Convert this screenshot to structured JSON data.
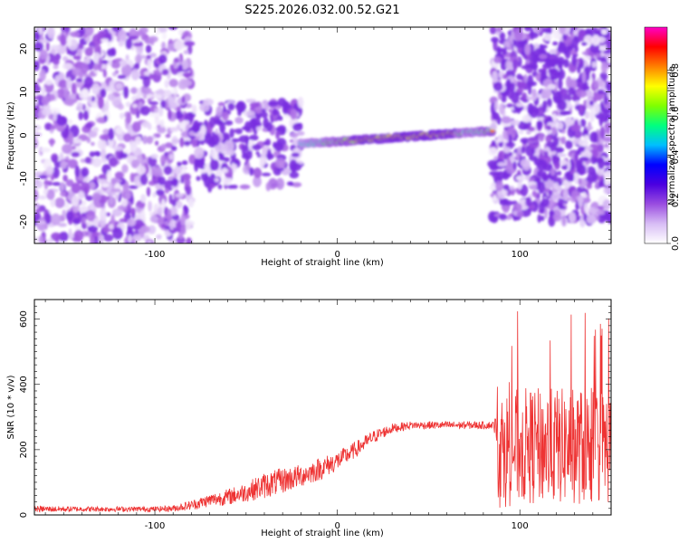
{
  "title": "S225.2026.032.00.52.G21",
  "chart_data": [
    {
      "type": "heatmap",
      "name": "spectrogram",
      "xlabel": "Height of straight line (km)",
      "ylabel": "Frequency (Hz)",
      "xlim": [
        -166,
        150
      ],
      "ylim": [
        -25,
        25
      ],
      "xticks": [
        -100,
        0,
        100
      ],
      "yticks": [
        -20,
        -10,
        0,
        10,
        20
      ],
      "colorbar": {
        "label": "Normalized spectral amplitude",
        "range": [
          0,
          1
        ],
        "ticks": [
          0.0,
          0.2,
          0.4,
          0.6,
          0.8
        ],
        "tick_labels": [
          "0.0",
          "0.2",
          "0.4",
          "0.6",
          "0.8"
        ],
        "colors": [
          "#ffffff",
          "#d8bdf5",
          "#9a4de0",
          "#4b00e0",
          "#0000ff",
          "#00bfff",
          "#00ff7f",
          "#7fff00",
          "#ffff00",
          "#ff8000",
          "#ff0000",
          "#ff00c8"
        ]
      },
      "regions": [
        {
          "description": "scattered noise",
          "x_range": [
            -166,
            -80
          ],
          "y_range": [
            -25,
            25
          ],
          "amplitude": 0.1
        },
        {
          "description": "emerging signal",
          "x_range": [
            -80,
            -20
          ],
          "y_range": [
            -12,
            8
          ],
          "amplitude": 0.2
        },
        {
          "description": "coherent signal band",
          "x_range": [
            -20,
            85
          ],
          "freq_at_start": -2,
          "freq_at_end": 1,
          "amplitude_peak": 1.0
        },
        {
          "description": "scattered noise",
          "x_range": [
            85,
            150
          ],
          "y_range": [
            -20,
            25
          ],
          "amplitude": 0.15
        }
      ]
    },
    {
      "type": "line",
      "name": "snr",
      "xlabel": "Height of straight line (km)",
      "ylabel": "SNR (10 * v/v)",
      "xlim": [
        -166,
        150
      ],
      "ylim": [
        0,
        660
      ],
      "xticks": [
        -100,
        0,
        100
      ],
      "yticks": [
        0,
        200,
        400,
        600
      ],
      "series": [
        {
          "name": "SNR",
          "color": "#ee3333",
          "x": [
            -166,
            -140,
            -120,
            -100,
            -90,
            -80,
            -70,
            -60,
            -50,
            -40,
            -30,
            -20,
            -10,
            0,
            10,
            20,
            30,
            40,
            50,
            60,
            70,
            80,
            86,
            88,
            100,
            110,
            120,
            130,
            140,
            150
          ],
          "y": [
            18,
            18,
            18,
            18,
            20,
            30,
            45,
            55,
            70,
            90,
            105,
            120,
            140,
            165,
            200,
            240,
            265,
            275,
            275,
            275,
            275,
            275,
            275,
            200,
            210,
            210,
            210,
            210,
            210,
            210
          ],
          "noise": [
            10,
            8,
            8,
            8,
            10,
            15,
            20,
            25,
            30,
            40,
            40,
            35,
            35,
            30,
            25,
            20,
            15,
            12,
            12,
            12,
            12,
            12,
            12,
            180,
            180,
            180,
            180,
            180,
            180,
            180
          ]
        }
      ]
    }
  ]
}
